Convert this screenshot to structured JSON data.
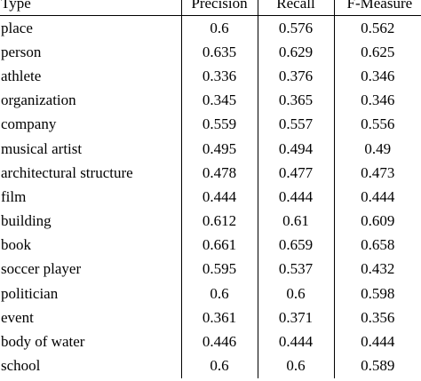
{
  "table": {
    "headers": {
      "type": "Type",
      "precision": "Precision",
      "recall": "Recall",
      "f_measure": "F-Measure"
    },
    "rows": [
      {
        "type": "place",
        "precision": "0.6",
        "recall": "0.576",
        "f_measure": "0.562"
      },
      {
        "type": "person",
        "precision": "0.635",
        "recall": "0.629",
        "f_measure": "0.625"
      },
      {
        "type": "athlete",
        "precision": "0.336",
        "recall": "0.376",
        "f_measure": "0.346"
      },
      {
        "type": "organization",
        "precision": "0.345",
        "recall": "0.365",
        "f_measure": "0.346"
      },
      {
        "type": "company",
        "precision": "0.559",
        "recall": "0.557",
        "f_measure": "0.556"
      },
      {
        "type": "musical artist",
        "precision": "0.495",
        "recall": "0.494",
        "f_measure": "0.49"
      },
      {
        "type": "architectural structure",
        "precision": "0.478",
        "recall": "0.477",
        "f_measure": "0.473"
      },
      {
        "type": "film",
        "precision": "0.444",
        "recall": "0.444",
        "f_measure": "0.444"
      },
      {
        "type": "building",
        "precision": "0.612",
        "recall": "0.61",
        "f_measure": "0.609"
      },
      {
        "type": "book",
        "precision": "0.661",
        "recall": "0.659",
        "f_measure": "0.658"
      },
      {
        "type": "soccer player",
        "precision": "0.595",
        "recall": "0.537",
        "f_measure": "0.432"
      },
      {
        "type": "politician",
        "precision": "0.6",
        "recall": "0.6",
        "f_measure": "0.598"
      },
      {
        "type": "event",
        "precision": "0.361",
        "recall": "0.371",
        "f_measure": "0.356"
      },
      {
        "type": "body of water",
        "precision": "0.446",
        "recall": "0.444",
        "f_measure": "0.444"
      },
      {
        "type": "school",
        "precision": "0.6",
        "recall": "0.6",
        "f_measure": "0.589"
      }
    ]
  }
}
